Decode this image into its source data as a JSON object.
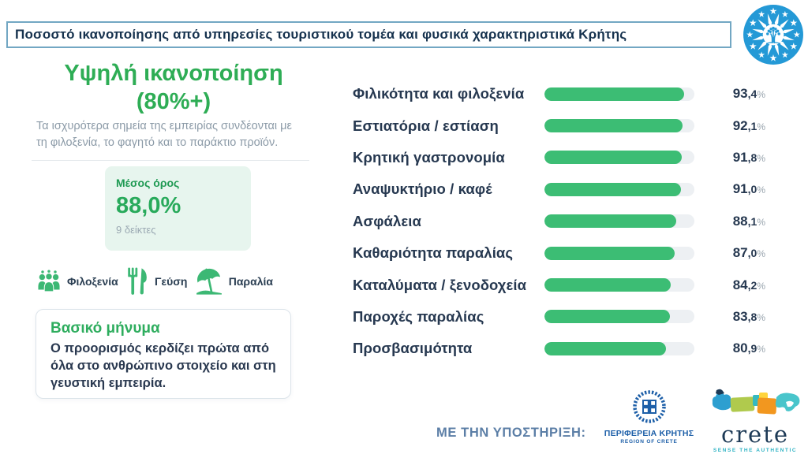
{
  "header": {
    "title": "Ποσοστό ικανοποίησης από υπηρεσίες τουριστικού τομέα και φυσικά χαρακτηριστικά Κρήτης"
  },
  "left_panel": {
    "heading_line1": "Υψηλή ικανοποίηση",
    "heading_line2": "(80%+)",
    "subtitle": "Τα ισχυρότερα σημεία της εμπειρίας συνδέονται με τη φιλοξενία, το φαγητό και το παράκτιο προϊόν.",
    "average_box": {
      "label": "Μέσος όρος",
      "value": "88,0%",
      "note": "9 δείκτες"
    },
    "highlights": [
      {
        "icon": "people-icon",
        "label": "Φιλοξενία"
      },
      {
        "icon": "cutlery-icon",
        "label": "Γεύση"
      },
      {
        "icon": "beach-umbrella-icon",
        "label": "Παραλία"
      }
    ],
    "key_message": {
      "title": "Βασικό μήνυμα",
      "body": "Ο προορισμός κερδίζει πρώτα από όλα στο ανθρώπινο στοιχείο και στη γευστική εμπειρία."
    }
  },
  "chart_data": {
    "type": "bar",
    "orientation": "horizontal",
    "title": "Ποσοστό ικανοποίησης από υπηρεσίες τουριστικού τομέα και φυσικά χαρακτηριστικά Κρήτης",
    "categories": [
      "Φιλικότητα και φιλοξενία",
      "Εστιατόρια / εστίαση",
      "Κρητική γαστρονομία",
      "Αναψυκτήριο / καφέ",
      "Ασφάλεια",
      "Καθαριότητα παραλίας",
      "Καταλύματα / ξενοδοχεία",
      "Παροχές παραλίας",
      "Προσβασιμότητα"
    ],
    "values": [
      93.4,
      92.1,
      91.8,
      91.0,
      88.1,
      87.0,
      84.2,
      83.8,
      80.9
    ],
    "value_labels": [
      "93,4%",
      "92,1%",
      "91,8%",
      "91,0%",
      "88,1%",
      "87,0%",
      "84,2%",
      "83,8%",
      "80,9%"
    ],
    "xlim": [
      0,
      100
    ],
    "grid": false,
    "legend": false,
    "bar_color": "#3cbd74",
    "track_color": "#edf0f3"
  },
  "footer": {
    "support_label": "ΜΕ ΤΗΝ ΥΠΟΣΤΗΡΙΞΗ:",
    "region_logo": {
      "line1": "ΠΕΡΙΦΕΡΕΙΑ ΚΡΗΤΗΣ",
      "line2": "REGION OF CRETE"
    },
    "crete_logo": {
      "word": "crete",
      "tagline": "SENSE THE AUTHENTIC"
    }
  },
  "colors": {
    "accent_green": "#2ead55",
    "bar_green": "#3cbd74",
    "mint_bg": "#e7f5ee",
    "navy_text": "#263850",
    "muted_gray": "#8b9aa7",
    "title_border": "#72a7c3",
    "region_blue": "#1d5fa8",
    "eu_logo_blue": "#2499d6",
    "crete_teal": "#2fb3c4"
  }
}
